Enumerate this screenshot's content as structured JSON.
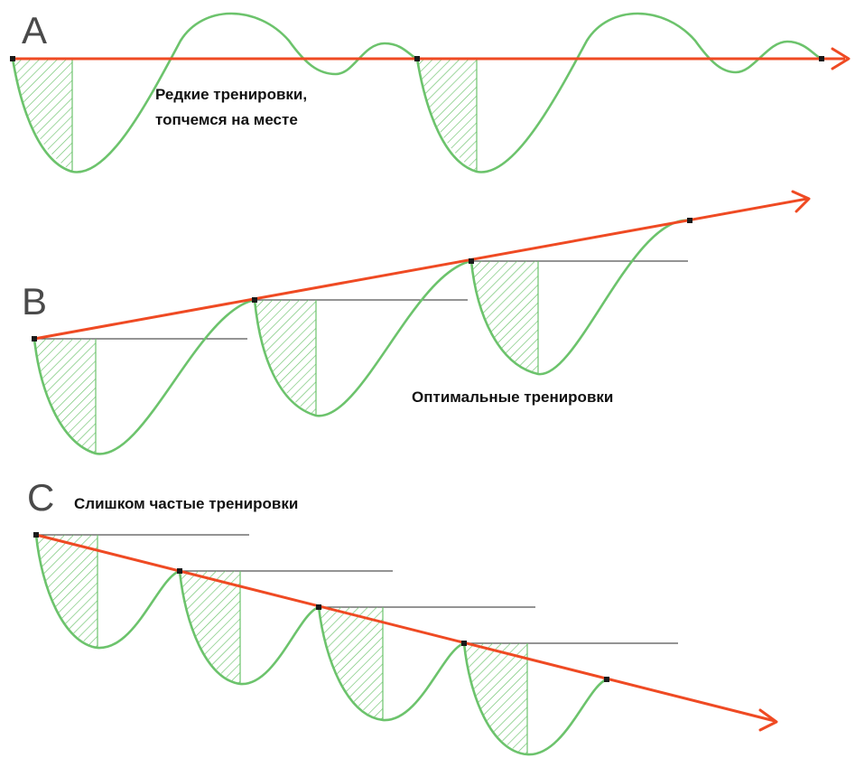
{
  "panels": [
    {
      "id": "A",
      "letter": "A",
      "caption_lines": [
        "Редкие тренировки,",
        "топчемся на месте"
      ]
    },
    {
      "id": "B",
      "letter": "B",
      "caption_lines": [
        "Оптимальные тренировки"
      ]
    },
    {
      "id": "C",
      "letter": "C",
      "caption_lines": [
        "Слишком частые тренировки"
      ]
    }
  ],
  "colors": {
    "curve": "#6cc36c",
    "trend": "#ef4a23",
    "baseline": "#555555",
    "marker": "#1a1a1a",
    "letter": "#4a4a4a"
  }
}
